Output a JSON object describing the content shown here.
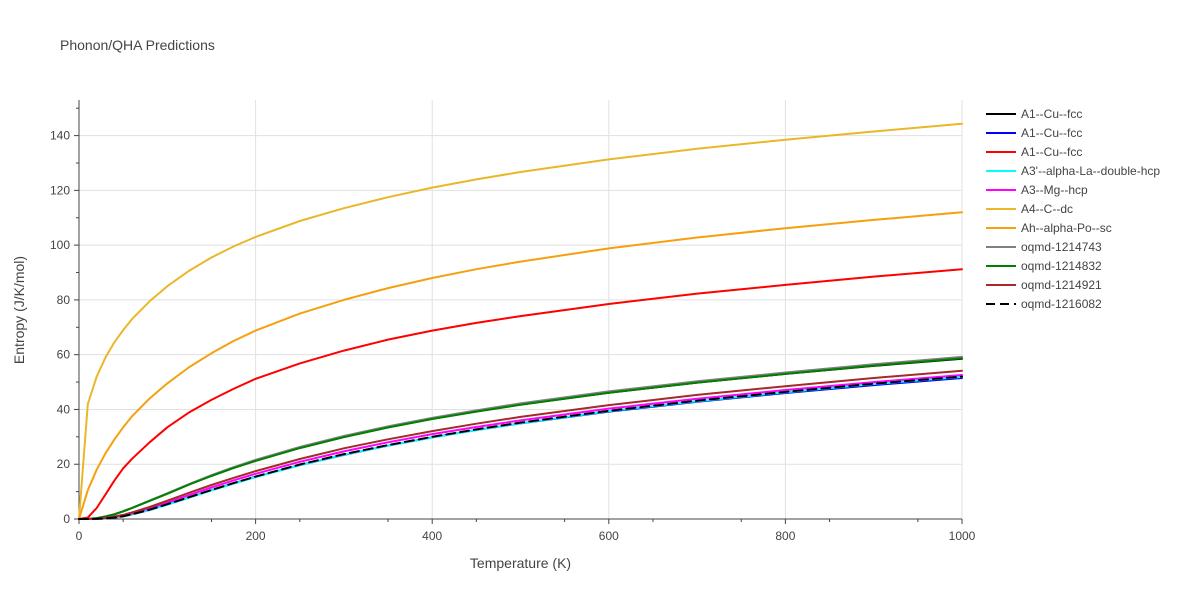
{
  "chart_data": {
    "type": "line",
    "title": "Phonon/QHA Predictions",
    "xlabel": "Temperature (K)",
    "ylabel": "Entropy (J/K/mol)",
    "xlim": [
      0,
      1000
    ],
    "ylim": [
      0,
      153
    ],
    "x_ticks": [
      0,
      200,
      400,
      600,
      800,
      1000
    ],
    "y_ticks": [
      0,
      20,
      40,
      60,
      80,
      100,
      120,
      140
    ],
    "grid": true,
    "legend_position": "right",
    "x": [
      0,
      10,
      20,
      30,
      40,
      50,
      60,
      80,
      100,
      125,
      150,
      175,
      200,
      250,
      300,
      350,
      400,
      450,
      500,
      600,
      700,
      800,
      900,
      1000
    ],
    "series": [
      {
        "name": "A1--Cu--fcc",
        "color": "#000000",
        "dash": "solid",
        "values": [
          0,
          0.05,
          0.3,
          0.9,
          1.7,
          2.8,
          4.0,
          6.7,
          9.3,
          12.7,
          15.8,
          18.7,
          21.3,
          26.0,
          30.0,
          33.5,
          36.6,
          39.3,
          41.8,
          46.1,
          49.8,
          53.0,
          55.9,
          58.5
        ]
      },
      {
        "name": "A1--Cu--fcc",
        "color": "#0000ff",
        "dash": "solid",
        "values": [
          0,
          0.01,
          0.05,
          0.2,
          0.5,
          1.0,
          1.7,
          3.3,
          5.3,
          7.9,
          10.5,
          13.0,
          15.4,
          19.7,
          23.4,
          26.8,
          29.8,
          32.5,
          34.9,
          39.2,
          42.8,
          46.0,
          48.9,
          51.5
        ]
      },
      {
        "name": "A1--Cu--fcc",
        "color": "#ff0000",
        "dash": "solid",
        "values": [
          0,
          0.5,
          4.0,
          9.0,
          14.0,
          18.5,
          22.0,
          28.0,
          33.5,
          39.0,
          43.5,
          47.5,
          51.2,
          56.8,
          61.5,
          65.5,
          68.8,
          71.6,
          74.1,
          78.5,
          82.3,
          85.5,
          88.5,
          91.2
        ]
      },
      {
        "name": "A3'--alpha-La--double-hcp",
        "color": "#00ffff",
        "dash": "solid",
        "values": [
          0,
          0.01,
          0.05,
          0.2,
          0.5,
          1.0,
          1.7,
          3.3,
          5.2,
          7.8,
          10.4,
          12.9,
          15.3,
          19.7,
          23.5,
          26.8,
          29.8,
          32.5,
          35.0,
          39.4,
          43.0,
          46.3,
          49.3,
          51.9
        ]
      },
      {
        "name": "A3--Mg--hcp",
        "color": "#ff00ff",
        "dash": "solid",
        "values": [
          0,
          0.01,
          0.08,
          0.3,
          0.7,
          1.3,
          2.0,
          3.9,
          6.0,
          8.8,
          11.5,
          14.1,
          16.5,
          20.9,
          24.7,
          28.0,
          31.0,
          33.6,
          36.0,
          40.3,
          43.9,
          47.1,
          50.0,
          52.6
        ]
      },
      {
        "name": "A4--C--dc",
        "color": "#eab72a",
        "dash": "solid",
        "values": [
          0,
          42.0,
          52.0,
          59.0,
          64.5,
          69.0,
          73.0,
          79.5,
          85.0,
          90.7,
          95.5,
          99.5,
          103.0,
          108.8,
          113.5,
          117.5,
          121.0,
          124.0,
          126.7,
          131.3,
          135.2,
          138.5,
          141.5,
          144.3
        ]
      },
      {
        "name": "Ah--alpha-Po--sc",
        "color": "#f5a00f",
        "dash": "solid",
        "values": [
          0,
          10.5,
          18.0,
          24.0,
          29.0,
          33.5,
          37.5,
          44.0,
          49.5,
          55.5,
          60.5,
          65.0,
          68.8,
          75.0,
          80.0,
          84.3,
          88.0,
          91.2,
          94.0,
          98.8,
          102.8,
          106.2,
          109.2,
          112.0
        ]
      },
      {
        "name": "oqmd-1214743",
        "color": "#808080",
        "dash": "solid",
        "values": [
          0,
          0.05,
          0.3,
          0.9,
          1.7,
          2.8,
          4.0,
          6.7,
          9.4,
          12.8,
          16.0,
          18.9,
          21.6,
          26.3,
          30.3,
          33.8,
          36.9,
          39.7,
          42.2,
          46.6,
          50.3,
          53.5,
          56.5,
          59.2
        ]
      },
      {
        "name": "oqmd-1214832",
        "color": "#008000",
        "dash": "solid",
        "values": [
          0,
          0.05,
          0.3,
          0.9,
          1.7,
          2.8,
          4.0,
          6.6,
          9.2,
          12.6,
          15.7,
          18.6,
          21.2,
          25.9,
          29.9,
          33.4,
          36.5,
          39.2,
          41.7,
          46.1,
          49.8,
          53.0,
          56.0,
          58.7
        ]
      },
      {
        "name": "oqmd-1214921",
        "color": "#a52a2a",
        "dash": "solid",
        "values": [
          0,
          0.02,
          0.1,
          0.4,
          0.9,
          1.5,
          2.4,
          4.4,
          6.7,
          9.6,
          12.4,
          15.0,
          17.5,
          21.9,
          25.8,
          29.1,
          32.1,
          34.8,
          37.3,
          41.6,
          45.3,
          48.5,
          51.5,
          54.1
        ]
      },
      {
        "name": "oqmd-1216082",
        "color": "#000000",
        "dash": "dash",
        "values": [
          0,
          0.01,
          0.06,
          0.2,
          0.5,
          1.0,
          1.7,
          3.4,
          5.4,
          8.0,
          10.6,
          13.1,
          15.5,
          19.9,
          23.7,
          27.0,
          30.0,
          32.7,
          35.2,
          39.5,
          43.2,
          46.4,
          49.4,
          52.0
        ]
      }
    ]
  }
}
